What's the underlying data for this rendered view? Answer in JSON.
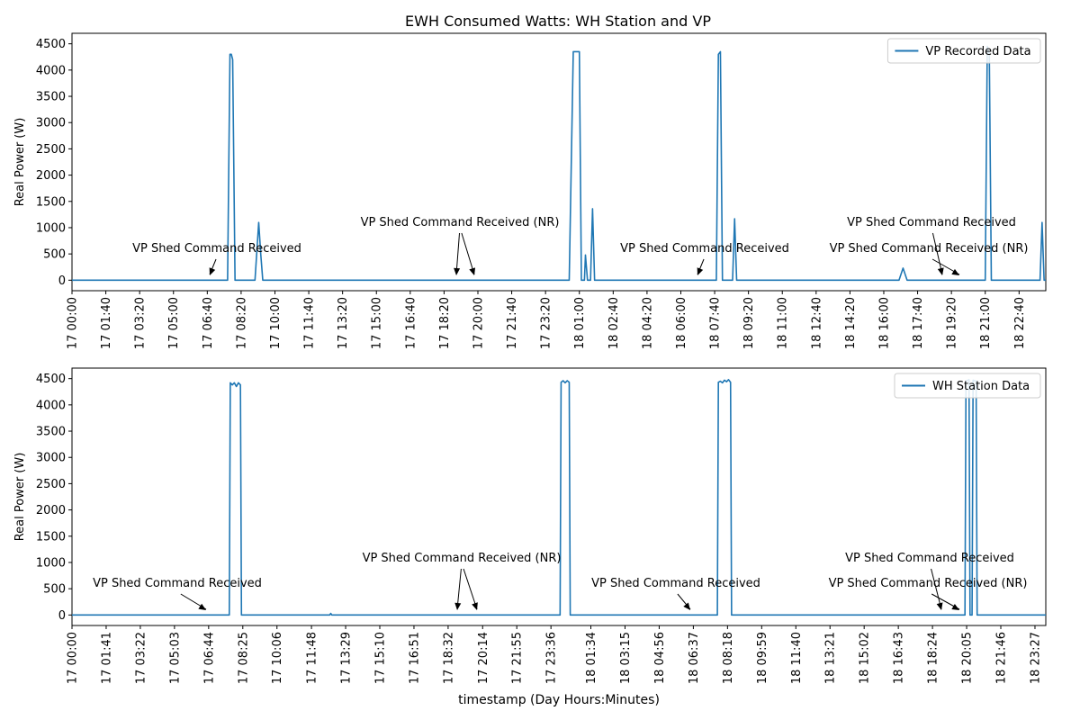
{
  "figure": {
    "title": "EWH Consumed Watts: WH Station and VP",
    "xlabel": "timestamp (Day Hours:Minutes)"
  },
  "colors": {
    "line": "#1f77b4",
    "axis": "#000000",
    "text": "#000000"
  },
  "chart_data": [
    {
      "type": "line",
      "ylabel": "Real Power (W)",
      "xlim": [
        "17 00:00",
        "18 23:59"
      ],
      "ylim": [
        -200,
        4700
      ],
      "yticks": [
        0,
        500,
        1000,
        1500,
        2000,
        2500,
        3000,
        3500,
        4000,
        4500
      ],
      "xticks": [
        "17 00:00",
        "17 01:40",
        "17 03:20",
        "17 05:00",
        "17 06:40",
        "17 08:20",
        "17 10:00",
        "17 11:40",
        "17 13:20",
        "17 15:00",
        "17 16:40",
        "17 18:20",
        "17 20:00",
        "17 21:40",
        "17 23:20",
        "18 01:00",
        "18 02:40",
        "18 04:20",
        "18 06:00",
        "18 07:40",
        "18 09:20",
        "18 11:00",
        "18 12:40",
        "18 14:20",
        "18 16:00",
        "18 17:40",
        "18 19:20",
        "18 21:00",
        "18 22:40"
      ],
      "grid": false,
      "legend_position": "top-right",
      "series": [
        {
          "name": "VP Recorded Data",
          "x": [
            "17 00:00",
            "17 07:40",
            "17 07:47",
            "17 07:51",
            "17 07:55",
            "17 08:02",
            "17 09:01",
            "17 09:12",
            "17 09:18",
            "17 09:24",
            "17 09:30",
            "18 00:30",
            "18 00:42",
            "18 00:48",
            "18 01:00",
            "18 01:06",
            "18 01:15",
            "18 01:18",
            "18 01:24",
            "18 01:30",
            "18 01:33",
            "18 01:39",
            "18 01:45",
            "18 01:51",
            "18 01:57",
            "18 02:00",
            "18 02:06",
            "18 07:45",
            "18 07:51",
            "18 07:57",
            "18 08:03",
            "18 08:09",
            "18 08:12",
            "18 08:33",
            "18 08:39",
            "18 08:45",
            "18 08:51",
            "18 16:45",
            "18 16:57",
            "18 17:09",
            "18 21:00",
            "18 21:06",
            "18 21:12",
            "18 21:18",
            "18 21:24",
            "18 21:30",
            "18 23:42",
            "18 23:48",
            "18 23:54",
            "18 23:59"
          ],
          "y": [
            0,
            0,
            4300,
            4300,
            4200,
            0,
            0,
            1100,
            500,
            0,
            0,
            0,
            4350,
            4350,
            4350,
            0,
            0,
            480,
            0,
            0,
            0,
            1360,
            0,
            0,
            0,
            0,
            0,
            0,
            4300,
            4350,
            0,
            0,
            0,
            0,
            1170,
            0,
            0,
            0,
            230,
            0,
            0,
            4450,
            4300,
            0,
            0,
            0,
            0,
            1100,
            0,
            0
          ]
        },
        {
          "name": "WH Station Data",
          "x": [
            "17 00:00",
            "17 07:45",
            "17 07:48",
            "17 07:54",
            "17 08:00",
            "17 08:06",
            "17 08:12",
            "17 08:18",
            "17 08:21",
            "17 08:24",
            "17 12:42",
            "17 12:45",
            "17 12:48",
            "18 00:03",
            "18 00:06",
            "18 00:12",
            "18 00:18",
            "18 00:24",
            "18 00:30",
            "18 00:33",
            "18 00:36",
            "18 07:48",
            "18 07:51",
            "18 07:57",
            "18 08:03",
            "18 08:09",
            "18 08:15",
            "18 08:21",
            "18 08:27",
            "18 08:30",
            "18 20:00",
            "18 20:03",
            "18 20:12",
            "18 20:15",
            "18 20:21",
            "18 20:24",
            "18 20:33",
            "18 20:36",
            "18 23:59"
          ],
          "y": [
            0,
            0,
            4420,
            4380,
            4420,
            4350,
            4420,
            4380,
            0,
            0,
            0,
            30,
            0,
            0,
            4430,
            4460,
            4420,
            4460,
            4430,
            0,
            0,
            0,
            4430,
            4450,
            4420,
            4470,
            4440,
            4480,
            4430,
            0,
            0,
            4450,
            4480,
            0,
            0,
            4470,
            4450,
            0,
            0
          ]
        }
      ],
      "annotations": [
        {
          "text": "VP Shed Command Received",
          "x": "17 06:40"
        },
        {
          "text": "VP Shed Command Received (NR)",
          "x": "17 19:00"
        },
        {
          "text": "VP Shed Command Received (NR)",
          "x": "17 19:50"
        },
        {
          "text": "VP Shed Command Received",
          "x": "18 07:20"
        },
        {
          "text": "VP Shed Command Received",
          "x": "18 19:00"
        },
        {
          "text": "VP Shed Command Received (NR)",
          "x": "18 20:00"
        }
      ]
    },
    {
      "type": "line",
      "ylabel": "Real Power (W)",
      "xlim": [
        "17 00:00",
        "18 23:59"
      ],
      "ylim": [
        -200,
        4700
      ],
      "yticks": [
        0,
        500,
        1000,
        1500,
        2000,
        2500,
        3000,
        3500,
        4000,
        4500
      ],
      "xticks": [
        "17 00:00",
        "17 01:41",
        "17 03:22",
        "17 05:03",
        "17 06:44",
        "17 08:25",
        "17 10:06",
        "17 11:48",
        "17 13:29",
        "17 15:10",
        "17 16:51",
        "17 18:32",
        "17 20:14",
        "17 21:55",
        "17 23:36",
        "18 01:34",
        "18 03:15",
        "18 04:56",
        "18 06:37",
        "18 08:18",
        "18 09:59",
        "18 11:40",
        "18 13:21",
        "18 15:02",
        "18 16:43",
        "18 18:24",
        "18 20:05",
        "18 21:46",
        "18 23:27"
      ],
      "grid": false,
      "legend_position": "top-right",
      "series": [
        {
          "name": "VP Recorded Data",
          "x": [
            "17 00:00",
            "17 07:40",
            "17 07:47",
            "17 07:51",
            "17 07:55",
            "17 08:02",
            "17 09:01",
            "17 09:12",
            "17 09:18",
            "17 09:24",
            "17 09:30",
            "18 00:30",
            "18 00:42",
            "18 00:48",
            "18 01:00",
            "18 01:06",
            "18 01:15",
            "18 01:18",
            "18 01:24",
            "18 01:30",
            "18 01:33",
            "18 01:39",
            "18 01:45",
            "18 01:51",
            "18 01:57",
            "18 02:00",
            "18 02:06",
            "18 07:45",
            "18 07:51",
            "18 07:57",
            "18 08:03",
            "18 08:09",
            "18 08:12",
            "18 08:33",
            "18 08:39",
            "18 08:45",
            "18 08:51",
            "18 16:45",
            "18 16:57",
            "18 17:09",
            "18 21:00",
            "18 21:06",
            "18 21:12",
            "18 21:18",
            "18 21:24",
            "18 21:30",
            "18 23:42",
            "18 23:48",
            "18 23:54",
            "18 23:59"
          ],
          "y": [
            0,
            0,
            4300,
            4300,
            4200,
            0,
            0,
            1100,
            500,
            0,
            0,
            0,
            4350,
            4350,
            4350,
            0,
            0,
            480,
            0,
            0,
            0,
            1360,
            0,
            0,
            0,
            0,
            0,
            0,
            4300,
            4350,
            0,
            0,
            0,
            0,
            1170,
            0,
            0,
            0,
            230,
            0,
            0,
            4450,
            4300,
            0,
            0,
            0,
            0,
            1100,
            0,
            0
          ]
        },
        {
          "name": "WH Station Data",
          "x": [
            "17 00:00",
            "17 07:45",
            "17 07:48",
            "17 07:54",
            "17 08:00",
            "17 08:06",
            "17 08:12",
            "17 08:18",
            "17 08:21",
            "17 08:24",
            "17 12:42",
            "17 12:45",
            "17 12:48",
            "18 00:03",
            "18 00:06",
            "18 00:12",
            "18 00:18",
            "18 00:24",
            "18 00:30",
            "18 00:33",
            "18 00:36",
            "18 07:48",
            "18 07:51",
            "18 07:57",
            "18 08:03",
            "18 08:09",
            "18 08:15",
            "18 08:21",
            "18 08:27",
            "18 08:30",
            "18 20:00",
            "18 20:03",
            "18 20:12",
            "18 20:15",
            "18 20:21",
            "18 20:24",
            "18 20:33",
            "18 20:36",
            "18 23:59"
          ],
          "y": [
            0,
            0,
            4420,
            4380,
            4420,
            4350,
            4420,
            4380,
            0,
            0,
            0,
            30,
            0,
            0,
            4430,
            4460,
            4420,
            4460,
            4430,
            0,
            0,
            0,
            4430,
            4450,
            4420,
            4470,
            4440,
            4480,
            4430,
            0,
            0,
            4450,
            4480,
            0,
            0,
            4470,
            4450,
            0,
            0
          ]
        }
      ],
      "annotations": [
        {
          "text": "VP Shed Command Received",
          "x": "17 06:44"
        },
        {
          "text": "VP Shed Command Received (NR)",
          "x": "17 19:05"
        },
        {
          "text": "VP Shed Command Received (NR)",
          "x": "17 20:00"
        },
        {
          "text": "VP Shed Command Received",
          "x": "18 07:05"
        },
        {
          "text": "VP Shed Command Received",
          "x": "18 19:00"
        },
        {
          "text": "VP Shed Command Received (NR)",
          "x": "18 20:00"
        }
      ]
    }
  ]
}
